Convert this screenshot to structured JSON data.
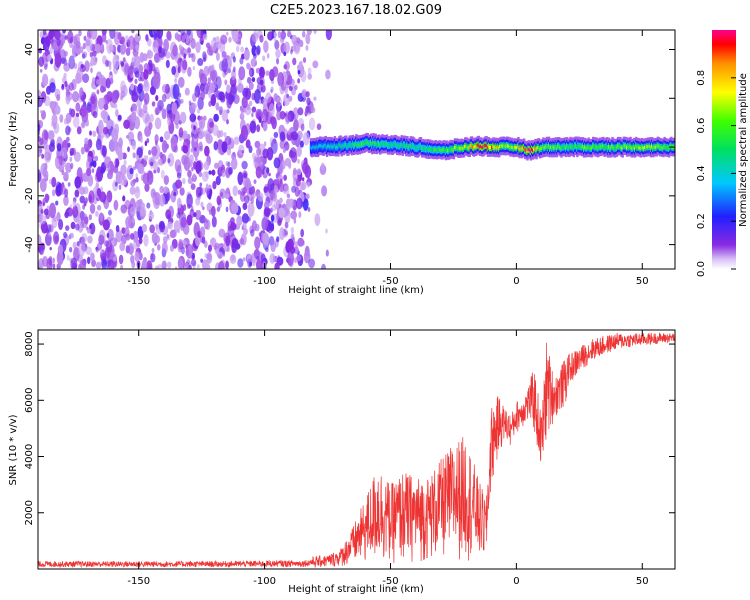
{
  "figure": {
    "title": "C2E5.2023.167.18.02.G09"
  },
  "chart_data": [
    {
      "type": "heatmap",
      "xlabel": "Height of straight line (km)",
      "ylabel": "Frequency (Hz)",
      "xlim": [
        -190,
        63
      ],
      "ylim": [
        -50,
        48
      ],
      "xticks": [
        -150,
        -100,
        -50,
        0,
        50
      ],
      "xtick_labels": [
        "-150",
        "-100",
        "-50",
        "0",
        "50"
      ],
      "yticks": [
        -40,
        -20,
        0,
        20,
        40
      ],
      "ytick_labels": [
        "-40",
        "-20",
        "0",
        "20",
        "40"
      ],
      "colorbar": {
        "label": "Normalized spectral amplitude",
        "range": [
          0,
          1
        ],
        "ticks": [
          0.0,
          0.2,
          0.4,
          0.6,
          0.8
        ],
        "tick_labels": [
          "0.0",
          "0.2",
          "0.4",
          "0.6",
          "0.8"
        ],
        "colormap": "rainbow (white-violet-blue-cyan-green-yellow-red-magenta)"
      },
      "regions": [
        {
          "description": "broadband noise",
          "x": [
            -190,
            -82
          ],
          "freq": [
            -50,
            48
          ],
          "amplitude": [
            0.05,
            0.2
          ]
        },
        {
          "description": "narrowband carrier",
          "x": [
            -82,
            63
          ],
          "freq_center": 0,
          "freq_halfwidth": 3,
          "peak_amplitude": 1.0
        }
      ],
      "carrier_profile": {
        "x": [
          -82,
          -70,
          -60,
          -50,
          -40,
          -30,
          -20,
          -15,
          -10,
          -5,
          0,
          5,
          10,
          20,
          30,
          40,
          50,
          63
        ],
        "center_hz": [
          0,
          0.5,
          1.5,
          1,
          0,
          -1.5,
          0,
          0.5,
          0,
          0,
          0,
          -1.5,
          0,
          0,
          0,
          0,
          0,
          0
        ],
        "amplitude": [
          0.35,
          0.45,
          0.55,
          0.5,
          0.5,
          0.55,
          0.7,
          0.9,
          0.85,
          0.6,
          0.7,
          0.95,
          0.6,
          0.55,
          0.6,
          0.6,
          0.65,
          0.6
        ]
      }
    },
    {
      "type": "line",
      "xlabel": "Height of straight line (km)",
      "ylabel": "SNR (10 * v/v)",
      "xlim": [
        -190,
        63
      ],
      "ylim": [
        0,
        8500
      ],
      "xticks": [
        -150,
        -100,
        -50,
        0,
        50
      ],
      "xtick_labels": [
        "-150",
        "-100",
        "-50",
        "0",
        "50"
      ],
      "yticks": [
        2000,
        4000,
        6000,
        8000
      ],
      "ytick_labels": [
        "2000",
        "4000",
        "6000",
        "8000"
      ],
      "color": "#ee3333",
      "envelope": {
        "x": [
          -190,
          -120,
          -85,
          -75,
          -70,
          -65,
          -60,
          -55,
          -50,
          -45,
          -40,
          -35,
          -30,
          -25,
          -20,
          -15,
          -12,
          -10,
          -7,
          -5,
          -2,
          0,
          2,
          5,
          7,
          10,
          12,
          15,
          20,
          25,
          30,
          40,
          50,
          63
        ],
        "low": [
          0,
          0,
          0,
          50,
          80,
          100,
          150,
          200,
          150,
          150,
          200,
          250,
          300,
          300,
          300,
          300,
          200,
          2800,
          4000,
          4500,
          4300,
          4800,
          5000,
          5200,
          4800,
          3300,
          4500,
          5300,
          5800,
          6500,
          7000,
          7500,
          7700,
          7900
        ],
        "high": [
          350,
          350,
          400,
          500,
          700,
          1500,
          2500,
          3800,
          3000,
          3500,
          3300,
          3300,
          3900,
          4500,
          4800,
          3200,
          2500,
          5800,
          6200,
          5800,
          5500,
          6000,
          6000,
          6600,
          7200,
          5500,
          8200,
          6800,
          7600,
          7900,
          8200,
          8400,
          8400,
          8400
        ]
      }
    }
  ]
}
